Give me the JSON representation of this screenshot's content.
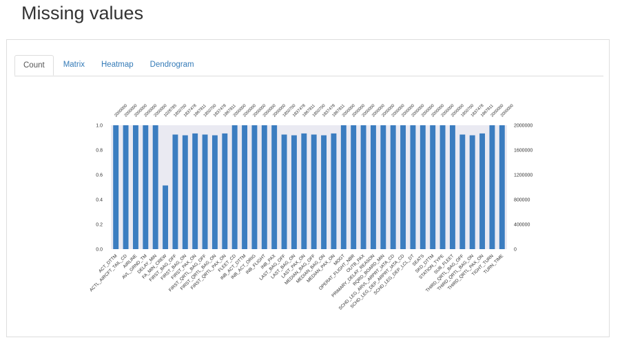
{
  "page": {
    "title": "Missing values"
  },
  "tabs": [
    {
      "label": "Count",
      "active": true
    },
    {
      "label": "Matrix",
      "active": false
    },
    {
      "label": "Heatmap",
      "active": false
    },
    {
      "label": "Dendrogram",
      "active": false
    }
  ],
  "colors": {
    "bar": "#3b7dc0",
    "plot_bg": "#eaeaf2",
    "tab_link": "#337ab7"
  },
  "chart_data": {
    "type": "bar",
    "title": "",
    "xlabel": "",
    "ylabel": "",
    "ylim": [
      0,
      1
    ],
    "left_ticks": [
      "0.0",
      "0.2",
      "0.4",
      "0.6",
      "0.8",
      "1.0"
    ],
    "right_ticks": [
      "0",
      "400000",
      "800000",
      "1200000",
      "1600000",
      "2000000"
    ],
    "categories": [
      "ACT_DTTM",
      "ACTL_AIRCFT_TAIL_CD",
      "AIRLINE",
      "AVL_GRND_TM",
      "DELAY_MIN",
      "FA_MIN_CREW",
      "FIRST_BAG_OFF",
      "FIRST_BAG_ON",
      "FIRST_PAX_ON",
      "FIRST_QRTL_BAG_OFF",
      "FIRST_QRTL_BAG_ON",
      "FIRST_QRTL_PAX_ON",
      "FLEET_CD",
      "INB_ACT_DTTM",
      "INB_ACT_ORIG",
      "INB_FLIGHT",
      "INB_PAX",
      "LAST_BAG_OFF",
      "LAST_BAG_ON",
      "LAST_PAX_ON",
      "MEDIAN_BAG_OFF",
      "MEDIAN_BAG_ON",
      "MEDIAN_PAX_ON",
      "MOGT",
      "OPERAT_FLIGHT_NBR",
      "OUTB_PAX",
      "PRIMARY_DELAY_REASON",
      "RQRD_BOARD_MIN",
      "SCHD_LEG_ARVL_ARPRT_IATA_CD",
      "SCHD_LEG_DEP_ARPRT_IATA_CD",
      "SCHD_LEG_DEP_LCL_DT",
      "SEATS",
      "SKD_DTTM",
      "STATION_TYPE",
      "SUB_FLEET",
      "THIRD_QRTL_BAG_OFF",
      "THIRD_QRTL_BAG_ON",
      "THIRD_QRTL_PAX_ON",
      "TIGHT_TURN",
      "TURN_TIME"
    ],
    "counts": [
      "2000000",
      "2000000",
      "2000000",
      "2000000",
      "2000000",
      "1028785",
      "1850700",
      "1837478",
      "1867811",
      "1850700",
      "1837478",
      "1867811",
      "2000000",
      "2000000",
      "2000000",
      "2000000",
      "2000000",
      "1850700",
      "1837478",
      "1867811",
      "1850700",
      "1837478",
      "1867811",
      "2000000",
      "2000000",
      "2000000",
      "2000000",
      "2000000",
      "2000000",
      "2000000",
      "2000000",
      "2000000",
      "2000000",
      "2000000",
      "2000000",
      "1850700",
      "1837478",
      "1867811",
      "2000000",
      "2000000"
    ],
    "values": [
      1.0,
      1.0,
      1.0,
      1.0,
      1.0,
      0.514,
      0.925,
      0.919,
      0.934,
      0.925,
      0.919,
      0.934,
      1.0,
      1.0,
      1.0,
      1.0,
      1.0,
      0.925,
      0.919,
      0.934,
      0.925,
      0.919,
      0.934,
      1.0,
      1.0,
      1.0,
      1.0,
      1.0,
      1.0,
      1.0,
      1.0,
      1.0,
      1.0,
      1.0,
      1.0,
      0.925,
      0.919,
      0.934,
      1.0,
      1.0
    ],
    "grid": false,
    "legend": "none"
  }
}
